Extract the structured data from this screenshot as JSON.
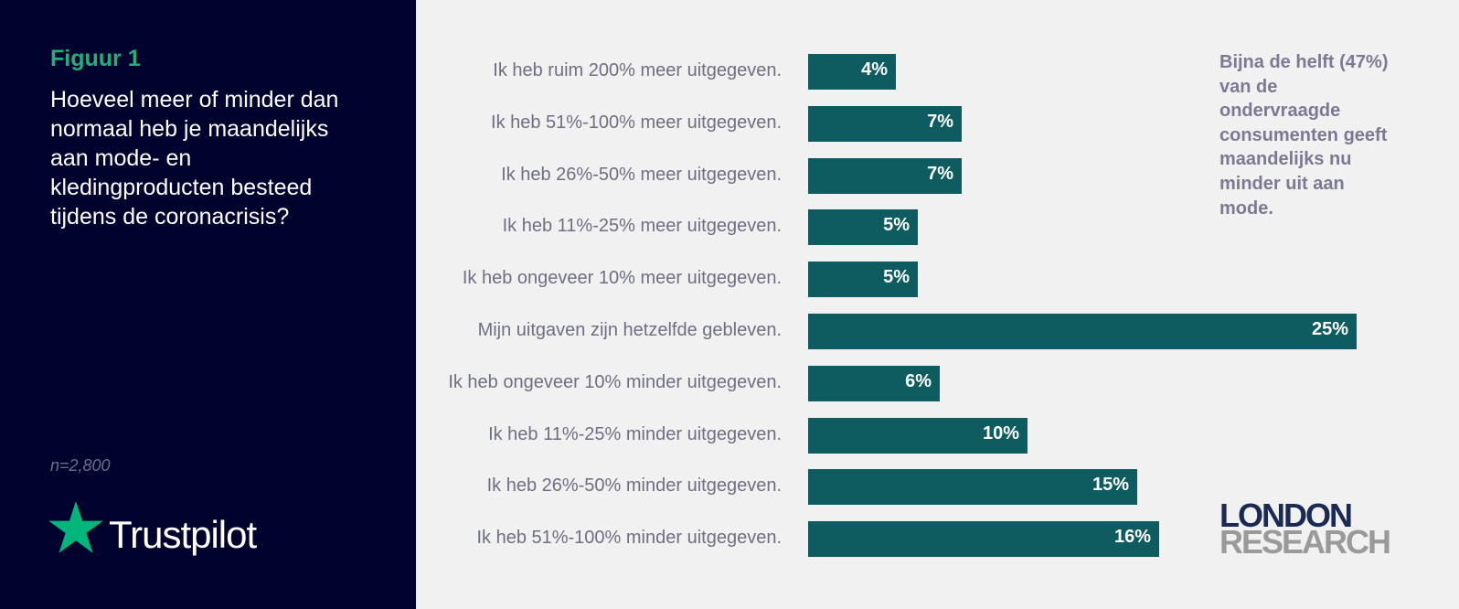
{
  "figure_label": "Figuur 1",
  "question": "Hoeveel meer of minder dan normaal heb je maandelijks aan mode- en kledingproducten besteed tijdens de coronacrisis?",
  "sample_size": "n=2,800",
  "brand": {
    "name": "Trustpilot",
    "star_color": "#00b67a"
  },
  "annotation": "Bijna de helft (47%) van de ondervraagde consumenten geeft maandelijks nu minder uit aan mode.",
  "publisher": {
    "line1": "LONDON",
    "line2": "RESEARCH"
  },
  "colors": {
    "bar": "#0e5c5f",
    "panel": "#02022e",
    "accent": "#22b07a"
  },
  "chart_data": {
    "type": "bar",
    "orientation": "horizontal",
    "title": "Hoeveel meer of minder dan normaal heb je maandelijks aan mode- en kledingproducten besteed tijdens de coronacrisis?",
    "unit": "%",
    "xlim": [
      0,
      25
    ],
    "categories": [
      "Ik heb ruim 200% meer uitgegeven.",
      "Ik heb 51%-100% meer uitgegeven.",
      "Ik heb 26%-50% meer uitgegeven.",
      "Ik heb 11%-25% meer uitgegeven.",
      "Ik heb ongeveer 10% meer uitgegeven.",
      "Mijn uitgaven zijn hetzelfde gebleven.",
      "Ik heb ongeveer 10% minder uitgegeven.",
      "Ik heb 11%-25% minder uitgegeven.",
      "Ik heb 26%-50% minder uitgegeven.",
      "Ik heb 51%-100% minder uitgegeven."
    ],
    "values": [
      4,
      7,
      7,
      5,
      5,
      25,
      6,
      10,
      15,
      16
    ],
    "value_labels": [
      "4%",
      "7%",
      "7%",
      "5%",
      "5%",
      "25%",
      "6%",
      "10%",
      "15%",
      "16%"
    ]
  }
}
